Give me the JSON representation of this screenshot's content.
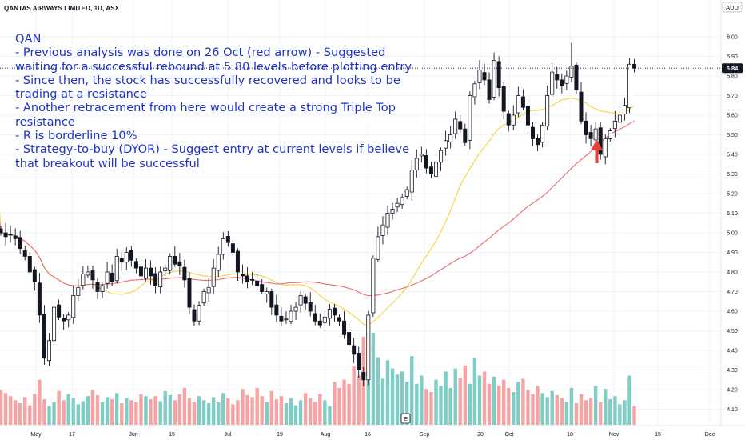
{
  "header": {
    "symbol_title": "QANTAS AIRWAYS LIMITED, 1D, ASX",
    "currency": "AUD"
  },
  "annotation": {
    "lines": [
      "QAN",
      "- Previous analysis was done on 26 Oct (red arrow) - Suggested waiting for a successful rebound at 5.80 levels before plotting entry",
      "- Since then, the stock has successfully recovered and looks to be trading at a resistance",
      "- Another retracement from here would create a strong Triple Top resistance",
      "- R is borderline 10%",
      "- Strategy-to-buy (DYOR) - Suggest entry at current levels if believe that breakout will be successful"
    ]
  },
  "colors": {
    "up": "#26a69a",
    "down": "#ef5350",
    "candle_body_up": "#ffffff",
    "candle_body_down": "#131722",
    "ma_fast": "#f5d33b",
    "ma_slow": "#ef6b6b",
    "text_note": "#1e33c8",
    "last_price_bg": "#131722",
    "arrow": "#e8413a"
  },
  "earnings_marker": "E",
  "chart_data": {
    "type": "candlestick",
    "title": "QANTAS AIRWAYS LIMITED, 1D, ASX",
    "price_axis_unit": "AUD",
    "ylim": [
      4.07,
      6.08
    ],
    "price_ticks": [
      "6.00",
      "5.90",
      "5.80",
      "5.70",
      "5.60",
      "5.50",
      "5.40",
      "5.30",
      "5.20",
      "5.10",
      "5.00",
      "4.90",
      "4.80",
      "4.70",
      "4.60",
      "4.50",
      "4.40",
      "4.30",
      "4.20",
      "4.10"
    ],
    "time_ticks": [
      "May",
      "17",
      "Jun",
      "15",
      "Jul",
      "19",
      "Aug",
      "16",
      "Sep",
      "20",
      "Oct",
      "18",
      "Nov",
      "15",
      "Dec"
    ],
    "last_price": "5.84",
    "last_price_value": 5.84,
    "resistance_level": 5.88,
    "triple_top_resistance": 5.88,
    "arrow_marked_date": "26 Oct",
    "moving_averages": [
      "fast (yellow)",
      "slow (red)"
    ],
    "close": [
      5.0,
      4.98,
      4.99,
      4.97,
      4.92,
      4.88,
      4.8,
      4.75,
      4.58,
      4.36,
      4.45,
      4.62,
      4.57,
      4.55,
      4.58,
      4.68,
      4.72,
      4.79,
      4.8,
      4.76,
      4.7,
      4.73,
      4.8,
      4.75,
      4.88,
      4.85,
      4.9,
      4.86,
      4.82,
      4.78,
      4.82,
      4.78,
      4.73,
      4.8,
      4.82,
      4.88,
      4.84,
      4.83,
      4.76,
      4.62,
      4.55,
      4.63,
      4.7,
      4.72,
      4.82,
      4.89,
      4.97,
      4.95,
      4.9,
      4.8,
      4.78,
      4.75,
      4.76,
      4.73,
      4.7,
      4.7,
      4.62,
      4.58,
      4.55,
      4.56,
      4.6,
      4.62,
      4.68,
      4.64,
      4.6,
      4.55,
      4.53,
      4.57,
      4.61,
      4.58,
      4.55,
      4.48,
      4.43,
      4.38,
      4.3,
      4.25,
      4.58,
      4.87,
      4.98,
      5.04,
      5.1,
      5.12,
      5.15,
      5.18,
      5.22,
      5.32,
      5.38,
      5.4,
      5.33,
      5.3,
      5.36,
      5.42,
      5.47,
      5.5,
      5.58,
      5.53,
      5.46,
      5.7,
      5.76,
      5.83,
      5.78,
      5.68,
      5.88,
      5.74,
      5.62,
      5.55,
      5.6,
      5.7,
      5.64,
      5.55,
      5.48,
      5.45,
      5.55,
      5.7,
      5.82,
      5.78,
      5.75,
      5.8,
      5.85,
      5.73,
      5.57,
      5.5,
      5.48,
      5.53,
      5.4,
      5.48,
      5.52,
      5.57,
      5.6,
      5.65,
      5.86,
      5.84
    ],
    "volume": [
      34,
      31,
      28,
      24,
      21,
      27,
      19,
      30,
      44,
      25,
      18,
      22,
      33,
      24,
      30,
      26,
      20,
      23,
      28,
      34,
      29,
      22,
      27,
      25,
      31,
      21,
      26,
      24,
      22,
      30,
      28,
      25,
      28,
      23,
      33,
      29,
      24,
      30,
      36,
      26,
      22,
      28,
      24,
      21,
      27,
      22,
      31,
      26,
      20,
      24,
      35,
      29,
      27,
      36,
      28,
      22,
      33,
      25,
      28,
      21,
      26,
      19,
      24,
      31,
      26,
      22,
      30,
      24,
      18,
      42,
      36,
      44,
      40,
      57,
      48,
      86,
      72,
      90,
      66,
      45,
      63,
      55,
      49,
      52,
      42,
      67,
      40,
      48,
      35,
      32,
      44,
      38,
      52,
      36,
      55,
      46,
      58,
      40,
      65,
      48,
      52,
      40,
      47,
      38,
      44,
      36,
      32,
      42,
      45,
      34,
      30,
      38,
      31,
      27,
      33,
      29,
      26,
      22,
      36,
      21,
      30,
      24,
      26,
      38,
      22,
      35,
      25,
      28,
      20,
      24,
      48,
      18
    ]
  }
}
